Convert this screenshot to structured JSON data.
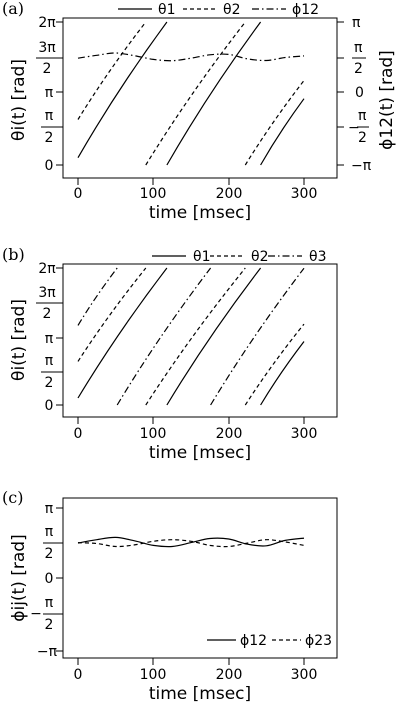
{
  "chart_data": [
    {
      "panel_label": "(a)",
      "type": "line",
      "xlabel": "time [msec]",
      "ylabel": "θi(t) [rad]",
      "ylabel_right": "ϕ12(t) [rad]",
      "xlim": [
        0,
        300
      ],
      "ylim": [
        0,
        6.2832
      ],
      "ylim_right": [
        -3.1416,
        3.1416
      ],
      "x_ticks": [
        "0",
        "100",
        "200",
        "300"
      ],
      "y_ticks_left": [
        "0",
        "π/2",
        "π",
        "3π/2",
        "2π"
      ],
      "y_ticks_right": [
        "−π",
        "−π/2",
        "0",
        "π/2",
        "π"
      ],
      "legend_position": "top",
      "series": [
        {
          "name": "θ1",
          "style": "solid",
          "wrap": true,
          "x": [
            0,
            118
          ],
          "y": [
            0.32,
            6.2832
          ]
        },
        {
          "name": "θ2",
          "style": "dashed",
          "wrap": true,
          "x": [
            0,
            90
          ],
          "y": [
            2.0,
            6.2832
          ]
        },
        {
          "name": "ϕ12",
          "style": "dashdot",
          "axis": "right",
          "x": [
            0,
            25,
            50,
            75,
            100,
            125,
            150,
            175,
            200,
            225,
            250,
            275,
            300
          ],
          "y": [
            1.55,
            1.68,
            1.78,
            1.66,
            1.5,
            1.44,
            1.55,
            1.7,
            1.72,
            1.52,
            1.45,
            1.58,
            1.65
          ]
        }
      ]
    },
    {
      "panel_label": "(b)",
      "type": "line",
      "xlabel": "time [msec]",
      "ylabel": "θi(t) [rad]",
      "xlim": [
        0,
        300
      ],
      "ylim": [
        0,
        6.2832
      ],
      "x_ticks": [
        "0",
        "100",
        "200",
        "300"
      ],
      "y_ticks_left": [
        "0",
        "π/2",
        "π",
        "3π/2",
        "2π"
      ],
      "legend_position": "top-right",
      "series": [
        {
          "name": "θ1",
          "style": "solid",
          "wrap": true,
          "x": [
            0,
            118
          ],
          "y": [
            0.32,
            6.2832
          ]
        },
        {
          "name": "θ2",
          "style": "dashed",
          "wrap": true,
          "x": [
            0,
            90
          ],
          "y": [
            2.0,
            6.2832
          ]
        },
        {
          "name": "θ3",
          "style": "dashdot",
          "wrap": true,
          "x": [
            0,
            52
          ],
          "y": [
            3.65,
            6.2832
          ]
        }
      ]
    },
    {
      "panel_label": "(c)",
      "type": "line",
      "xlabel": "time [msec]",
      "ylabel": "ϕij(t) [rad]",
      "xlim": [
        0,
        300
      ],
      "ylim": [
        -3.1416,
        3.1416
      ],
      "x_ticks": [
        "0",
        "100",
        "200",
        "300"
      ],
      "y_ticks_left": [
        "−π",
        "−π/2",
        "0",
        "π/2",
        "π"
      ],
      "legend_position": "bottom-right",
      "series": [
        {
          "name": "ϕ12",
          "style": "solid",
          "x": [
            0,
            25,
            50,
            75,
            100,
            125,
            150,
            175,
            200,
            225,
            250,
            275,
            300
          ],
          "y": [
            1.6,
            1.75,
            1.85,
            1.7,
            1.5,
            1.45,
            1.62,
            1.8,
            1.78,
            1.55,
            1.48,
            1.72,
            1.82
          ]
        },
        {
          "name": "ϕ23",
          "style": "dashed",
          "x": [
            0,
            25,
            50,
            75,
            100,
            125,
            150,
            175,
            200,
            225,
            250,
            275,
            300
          ],
          "y": [
            1.62,
            1.58,
            1.45,
            1.52,
            1.68,
            1.75,
            1.68,
            1.5,
            1.45,
            1.6,
            1.75,
            1.65,
            1.5
          ]
        }
      ]
    }
  ]
}
